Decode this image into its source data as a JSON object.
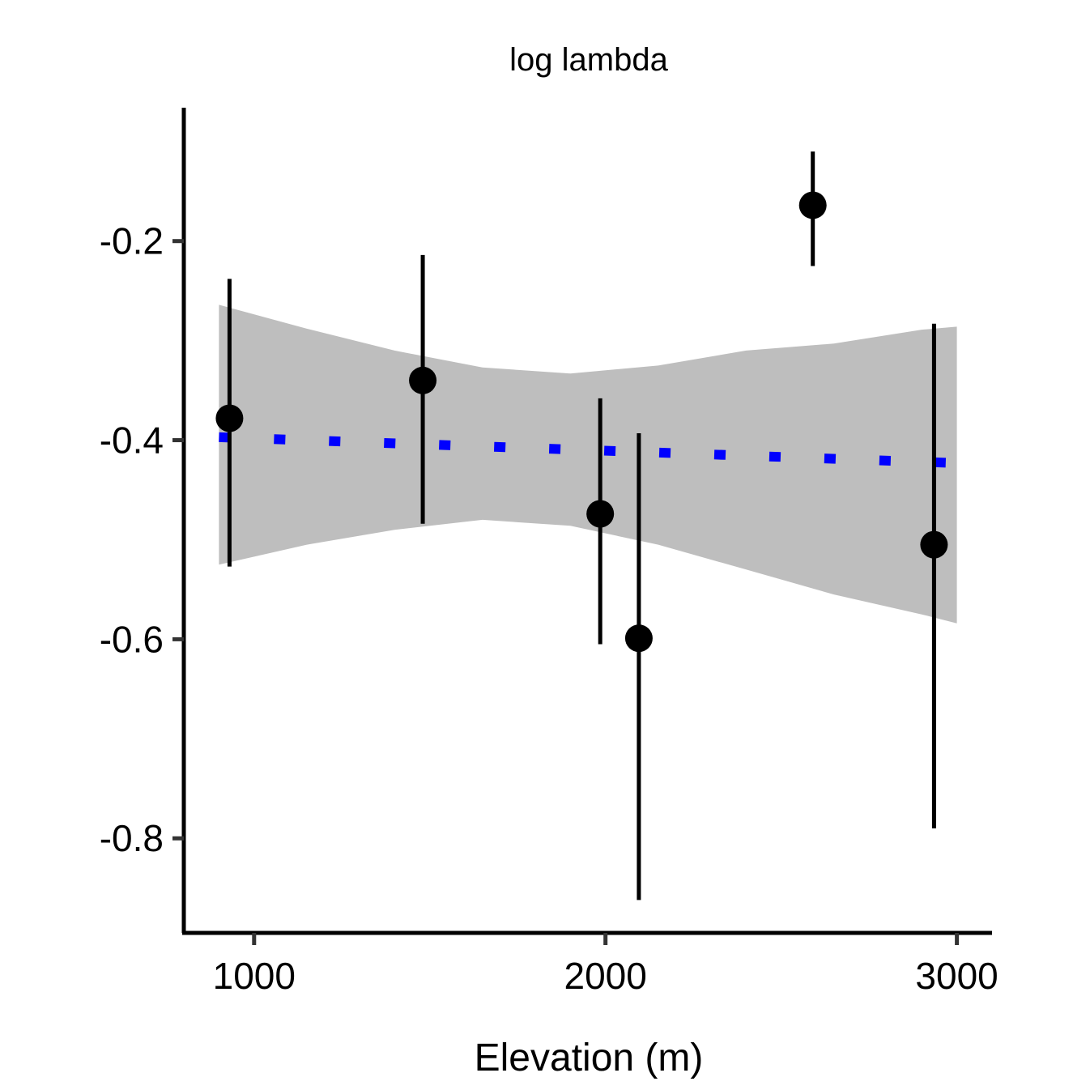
{
  "chart_data": {
    "type": "scatter",
    "title": "log lambda",
    "xlabel": "Elevation (m)",
    "ylabel": "",
    "xlim": [
      800,
      3100
    ],
    "ylim": [
      -0.895,
      -0.066
    ],
    "xticks": [
      1000,
      2000,
      3000
    ],
    "xtick_labels": [
      "1000",
      "2000",
      "3000"
    ],
    "yticks": [
      -0.2,
      -0.4,
      -0.6,
      -0.8
    ],
    "ytick_labels": [
      "-0.2",
      "-0.4",
      "-0.6",
      "-0.8"
    ],
    "grid": false,
    "points": [
      {
        "x": 930,
        "y": -0.378,
        "ymin": -0.527,
        "ymax": -0.238
      },
      {
        "x": 1480,
        "y": -0.34,
        "ymin": -0.484,
        "ymax": -0.214
      },
      {
        "x": 1985,
        "y": -0.474,
        "ymin": -0.605,
        "ymax": -0.358
      },
      {
        "x": 2095,
        "y": -0.599,
        "ymin": -0.862,
        "ymax": -0.393
      },
      {
        "x": 2590,
        "y": -0.164,
        "ymin": -0.225,
        "ymax": -0.11
      },
      {
        "x": 2935,
        "y": -0.505,
        "ymin": -0.79,
        "ymax": -0.283
      }
    ],
    "trend_line": {
      "style": "dotted",
      "color": "#0000ff",
      "x": [
        900,
        3000
      ],
      "y": [
        -0.397,
        -0.423
      ]
    },
    "confidence_band": {
      "color": "#bebebe",
      "x": [
        900,
        1150,
        1400,
        1650,
        1900,
        2150,
        2400,
        2650,
        2900,
        3000
      ],
      "upper": [
        -0.264,
        -0.288,
        -0.31,
        -0.327,
        -0.333,
        -0.325,
        -0.31,
        -0.303,
        -0.289,
        -0.286
      ],
      "lower": [
        -0.525,
        -0.505,
        -0.49,
        -0.48,
        -0.486,
        -0.505,
        -0.53,
        -0.555,
        -0.575,
        -0.584
      ]
    }
  }
}
